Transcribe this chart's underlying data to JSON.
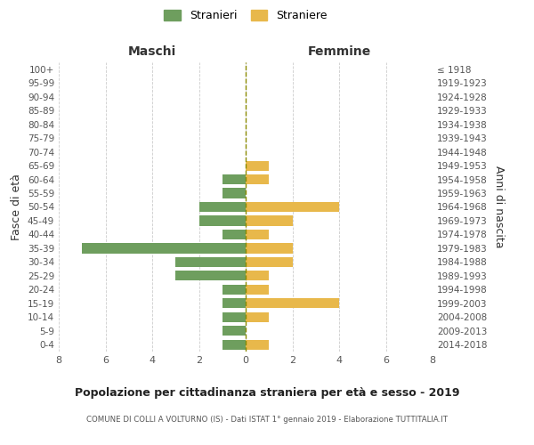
{
  "age_groups": [
    "100+",
    "95-99",
    "90-94",
    "85-89",
    "80-84",
    "75-79",
    "70-74",
    "65-69",
    "60-64",
    "55-59",
    "50-54",
    "45-49",
    "40-44",
    "35-39",
    "30-34",
    "25-29",
    "20-24",
    "15-19",
    "10-14",
    "5-9",
    "0-4"
  ],
  "birth_years": [
    "≤ 1918",
    "1919-1923",
    "1924-1928",
    "1929-1933",
    "1934-1938",
    "1939-1943",
    "1944-1948",
    "1949-1953",
    "1954-1958",
    "1959-1963",
    "1964-1968",
    "1969-1973",
    "1974-1978",
    "1979-1983",
    "1984-1988",
    "1989-1993",
    "1994-1998",
    "1999-2003",
    "2004-2008",
    "2009-2013",
    "2014-2018"
  ],
  "maschi": [
    0,
    0,
    0,
    0,
    0,
    0,
    0,
    0,
    1,
    1,
    2,
    2,
    1,
    7,
    3,
    3,
    1,
    1,
    1,
    1,
    1
  ],
  "femmine": [
    0,
    0,
    0,
    0,
    0,
    0,
    0,
    1,
    1,
    0,
    4,
    2,
    1,
    2,
    2,
    1,
    1,
    4,
    1,
    0,
    1
  ],
  "maschi_color": "#6e9e5e",
  "femmine_color": "#e8b84b",
  "title": "Popolazione per cittadinanza straniera per età e sesso - 2019",
  "subtitle": "COMUNE DI COLLI A VOLTURNO (IS) - Dati ISTAT 1° gennaio 2019 - Elaborazione TUTTITALIA.IT",
  "ylabel_left": "Fasce di età",
  "ylabel_right": "Anni di nascita",
  "xlabel_left": "Maschi",
  "xlabel_right": "Femmine",
  "legend_maschi": "Stranieri",
  "legend_femmine": "Straniere",
  "xlim": 8,
  "background_color": "#ffffff",
  "grid_color": "#cccccc"
}
